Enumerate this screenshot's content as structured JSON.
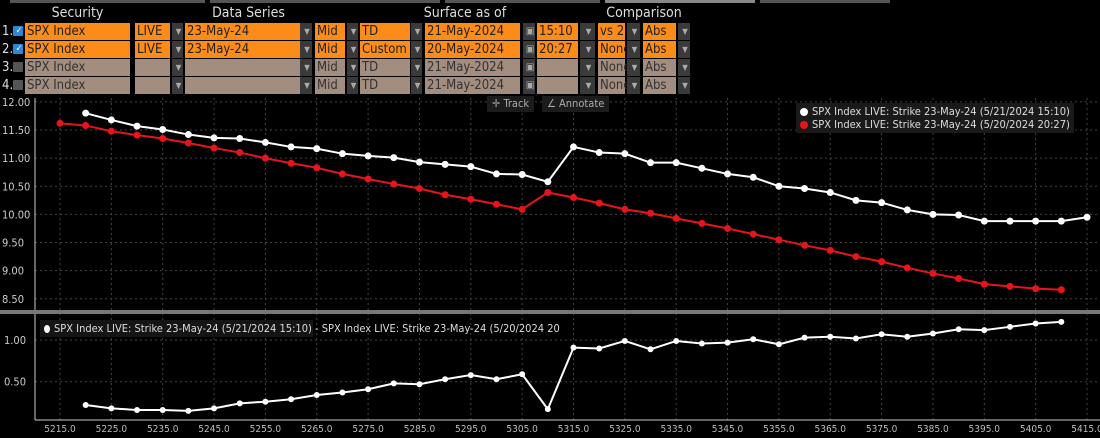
{
  "header": {
    "security": "Security",
    "data_series": "Data Series",
    "surface_as_of": "Surface as of",
    "comparison": "Comparison"
  },
  "rows": [
    {
      "num": "1.",
      "checked": true,
      "security": "SPX Index",
      "source": "LIVE",
      "expiry": "23-May-24",
      "side": "Mid",
      "mode": "TD",
      "date": "21-May-2024",
      "time": "15:10",
      "comparison": "vs 2",
      "abs": "Abs"
    },
    {
      "num": "2.",
      "checked": true,
      "security": "SPX Index",
      "source": "LIVE",
      "expiry": "23-May-24",
      "side": "Mid",
      "mode": "Custom",
      "date": "20-May-2024",
      "time": "20:27",
      "comparison": "None",
      "abs": "Abs"
    },
    {
      "num": "3.",
      "checked": false,
      "security": "SPX Index",
      "source": "",
      "expiry": "",
      "side": "Mid",
      "mode": "TD",
      "date": "21-May-2024",
      "time": "",
      "comparison": "None",
      "abs": "Abs"
    },
    {
      "num": "4.",
      "checked": false,
      "security": "SPX Index",
      "source": "",
      "expiry": "",
      "side": "Mid",
      "mode": "TD",
      "date": "21-May-2024",
      "time": "",
      "comparison": "None",
      "abs": "Abs"
    }
  ],
  "toolbar": {
    "track": "Track",
    "annotate": "Annotate"
  },
  "chart_data": [
    {
      "type": "line",
      "title": "",
      "ylim": [
        8.3,
        12.07
      ],
      "yticks": [
        "12.00",
        "11.50",
        "11.00",
        "10.50",
        "10.00",
        "9.50",
        "9.00",
        "8.50"
      ],
      "legend_position": "top-right",
      "series": [
        {
          "name": "SPX Index LIVE: Strike 23-May-24 (5/21/2024 15:10)",
          "color": "#ffffff",
          "x_start": 5220,
          "x_step": 5,
          "values": [
            11.8,
            11.68,
            11.57,
            11.51,
            11.42,
            11.36,
            11.35,
            11.28,
            11.2,
            11.17,
            11.08,
            11.04,
            11.01,
            10.93,
            10.89,
            10.85,
            10.72,
            10.71,
            10.58,
            11.2,
            11.1,
            11.08,
            10.92,
            10.92,
            10.82,
            10.72,
            10.66,
            10.5,
            10.46,
            10.39,
            10.25,
            10.21,
            10.08,
            10.0,
            9.99,
            9.88,
            9.88,
            9.88,
            9.88,
            9.95
          ]
        },
        {
          "name": "SPX Index LIVE: Strike 23-May-24 (5/20/2024 20:27)",
          "color": "#e8141b",
          "x_start": 5215,
          "x_step": 5,
          "values": [
            11.62,
            11.58,
            11.48,
            11.41,
            11.35,
            11.27,
            11.18,
            11.1,
            11.0,
            10.91,
            10.83,
            10.72,
            10.63,
            10.54,
            10.46,
            10.35,
            10.27,
            10.18,
            10.09,
            10.39,
            10.3,
            10.2,
            10.09,
            10.02,
            9.93,
            9.84,
            9.75,
            9.65,
            9.55,
            9.45,
            9.36,
            9.25,
            9.16,
            9.05,
            8.95,
            8.86,
            8.76,
            8.72,
            8.68,
            8.66
          ]
        }
      ]
    },
    {
      "type": "line",
      "ylim": [
        0.04,
        1.29
      ],
      "yticks": [
        "1.00",
        "0.50"
      ],
      "xlim": [
        5215,
        5415
      ],
      "xticks": [
        "5215.0",
        "5225.0",
        "5235.0",
        "5245.0",
        "5255.0",
        "5265.0",
        "5275.0",
        "5285.0",
        "5295.0",
        "5305.0",
        "5315.0",
        "5325.0",
        "5335.0",
        "5345.0",
        "5355.0",
        "5365.0",
        "5375.0",
        "5385.0",
        "5395.0",
        "5405.0",
        "5415.0"
      ],
      "legend_position": "top-left",
      "series": [
        {
          "name": "SPX Index LIVE: Strike 23-May-24 (5/21/2024 15:10) - SPX Index LIVE: Strike 23-May-24 (5/20/2024 20",
          "color": "#ffffff",
          "x_start": 5220,
          "x_step": 5,
          "values": [
            0.22,
            0.18,
            0.16,
            0.16,
            0.15,
            0.18,
            0.24,
            0.26,
            0.29,
            0.34,
            0.37,
            0.41,
            0.48,
            0.47,
            0.53,
            0.58,
            0.53,
            0.59,
            0.17,
            0.91,
            0.9,
            0.99,
            0.89,
            0.99,
            0.96,
            0.97,
            1.01,
            0.95,
            1.03,
            1.04,
            1.02,
            1.07,
            1.04,
            1.08,
            1.13,
            1.12,
            1.16,
            1.2,
            1.22
          ]
        }
      ]
    }
  ]
}
